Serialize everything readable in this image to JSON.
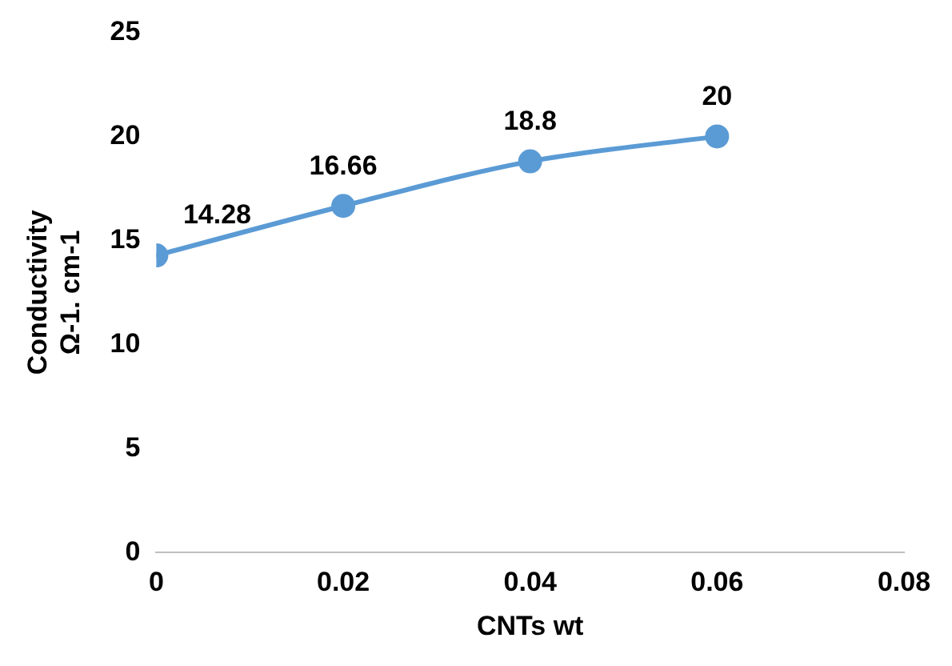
{
  "chart_data": {
    "type": "line",
    "xlabel": "CNTs wt",
    "ylabel": "Conductivity\nΩ-1. cm-1",
    "x": [
      0,
      0.02,
      0.04,
      0.06
    ],
    "series": [
      {
        "color": "#5b9bd5",
        "values": [
          14.28,
          16.66,
          18.8,
          20
        ]
      }
    ],
    "xlim": [
      0,
      0.08
    ],
    "xticks": [
      0,
      0.02,
      0.04,
      0.06,
      0.08
    ],
    "ylim": [
      0,
      25
    ],
    "yticks": [
      0,
      5,
      10,
      15,
      20,
      25
    ],
    "grid": false,
    "legend": false,
    "marker": "circle",
    "line_style": "solid",
    "data_labels": true
  }
}
